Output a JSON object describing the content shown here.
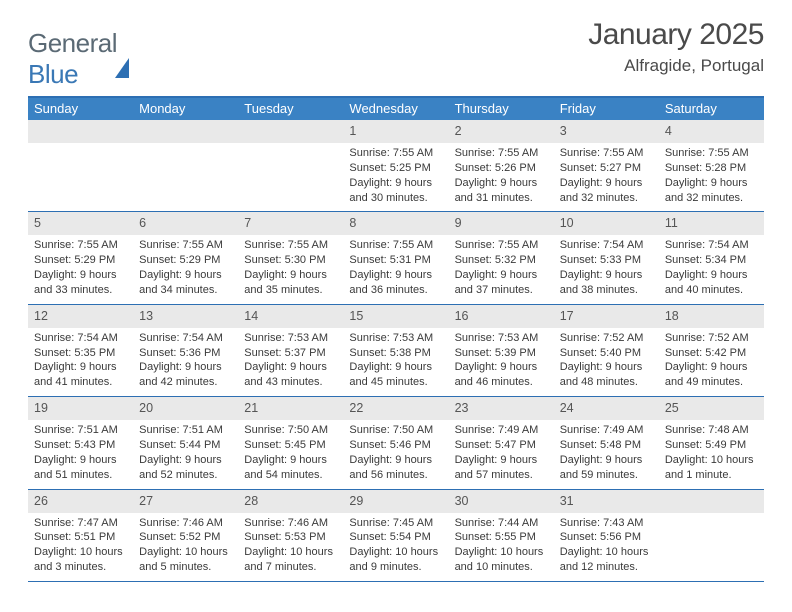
{
  "brand": {
    "part1": "General",
    "part2": "Blue"
  },
  "header": {
    "title": "January 2025",
    "location": "Alfragide, Portugal"
  },
  "colors": {
    "header_bar": "#3a82c4",
    "rule": "#2d6fb3",
    "daynum_bg": "#e9e9e9",
    "text": "#3a3a3a",
    "page_bg": "#ffffff"
  },
  "typography": {
    "title_fontsize": 30,
    "location_fontsize": 17,
    "dow_fontsize": 13,
    "daynum_fontsize": 12.5,
    "cell_fontsize": 11
  },
  "days_of_week": [
    "Sunday",
    "Monday",
    "Tuesday",
    "Wednesday",
    "Thursday",
    "Friday",
    "Saturday"
  ],
  "weeks": [
    [
      {
        "n": "",
        "sr": "",
        "ss": "",
        "dl": ""
      },
      {
        "n": "",
        "sr": "",
        "ss": "",
        "dl": ""
      },
      {
        "n": "",
        "sr": "",
        "ss": "",
        "dl": ""
      },
      {
        "n": "1",
        "sr": "Sunrise: 7:55 AM",
        "ss": "Sunset: 5:25 PM",
        "dl": "Daylight: 9 hours and 30 minutes."
      },
      {
        "n": "2",
        "sr": "Sunrise: 7:55 AM",
        "ss": "Sunset: 5:26 PM",
        "dl": "Daylight: 9 hours and 31 minutes."
      },
      {
        "n": "3",
        "sr": "Sunrise: 7:55 AM",
        "ss": "Sunset: 5:27 PM",
        "dl": "Daylight: 9 hours and 32 minutes."
      },
      {
        "n": "4",
        "sr": "Sunrise: 7:55 AM",
        "ss": "Sunset: 5:28 PM",
        "dl": "Daylight: 9 hours and 32 minutes."
      }
    ],
    [
      {
        "n": "5",
        "sr": "Sunrise: 7:55 AM",
        "ss": "Sunset: 5:29 PM",
        "dl": "Daylight: 9 hours and 33 minutes."
      },
      {
        "n": "6",
        "sr": "Sunrise: 7:55 AM",
        "ss": "Sunset: 5:29 PM",
        "dl": "Daylight: 9 hours and 34 minutes."
      },
      {
        "n": "7",
        "sr": "Sunrise: 7:55 AM",
        "ss": "Sunset: 5:30 PM",
        "dl": "Daylight: 9 hours and 35 minutes."
      },
      {
        "n": "8",
        "sr": "Sunrise: 7:55 AM",
        "ss": "Sunset: 5:31 PM",
        "dl": "Daylight: 9 hours and 36 minutes."
      },
      {
        "n": "9",
        "sr": "Sunrise: 7:55 AM",
        "ss": "Sunset: 5:32 PM",
        "dl": "Daylight: 9 hours and 37 minutes."
      },
      {
        "n": "10",
        "sr": "Sunrise: 7:54 AM",
        "ss": "Sunset: 5:33 PM",
        "dl": "Daylight: 9 hours and 38 minutes."
      },
      {
        "n": "11",
        "sr": "Sunrise: 7:54 AM",
        "ss": "Sunset: 5:34 PM",
        "dl": "Daylight: 9 hours and 40 minutes."
      }
    ],
    [
      {
        "n": "12",
        "sr": "Sunrise: 7:54 AM",
        "ss": "Sunset: 5:35 PM",
        "dl": "Daylight: 9 hours and 41 minutes."
      },
      {
        "n": "13",
        "sr": "Sunrise: 7:54 AM",
        "ss": "Sunset: 5:36 PM",
        "dl": "Daylight: 9 hours and 42 minutes."
      },
      {
        "n": "14",
        "sr": "Sunrise: 7:53 AM",
        "ss": "Sunset: 5:37 PM",
        "dl": "Daylight: 9 hours and 43 minutes."
      },
      {
        "n": "15",
        "sr": "Sunrise: 7:53 AM",
        "ss": "Sunset: 5:38 PM",
        "dl": "Daylight: 9 hours and 45 minutes."
      },
      {
        "n": "16",
        "sr": "Sunrise: 7:53 AM",
        "ss": "Sunset: 5:39 PM",
        "dl": "Daylight: 9 hours and 46 minutes."
      },
      {
        "n": "17",
        "sr": "Sunrise: 7:52 AM",
        "ss": "Sunset: 5:40 PM",
        "dl": "Daylight: 9 hours and 48 minutes."
      },
      {
        "n": "18",
        "sr": "Sunrise: 7:52 AM",
        "ss": "Sunset: 5:42 PM",
        "dl": "Daylight: 9 hours and 49 minutes."
      }
    ],
    [
      {
        "n": "19",
        "sr": "Sunrise: 7:51 AM",
        "ss": "Sunset: 5:43 PM",
        "dl": "Daylight: 9 hours and 51 minutes."
      },
      {
        "n": "20",
        "sr": "Sunrise: 7:51 AM",
        "ss": "Sunset: 5:44 PM",
        "dl": "Daylight: 9 hours and 52 minutes."
      },
      {
        "n": "21",
        "sr": "Sunrise: 7:50 AM",
        "ss": "Sunset: 5:45 PM",
        "dl": "Daylight: 9 hours and 54 minutes."
      },
      {
        "n": "22",
        "sr": "Sunrise: 7:50 AM",
        "ss": "Sunset: 5:46 PM",
        "dl": "Daylight: 9 hours and 56 minutes."
      },
      {
        "n": "23",
        "sr": "Sunrise: 7:49 AM",
        "ss": "Sunset: 5:47 PM",
        "dl": "Daylight: 9 hours and 57 minutes."
      },
      {
        "n": "24",
        "sr": "Sunrise: 7:49 AM",
        "ss": "Sunset: 5:48 PM",
        "dl": "Daylight: 9 hours and 59 minutes."
      },
      {
        "n": "25",
        "sr": "Sunrise: 7:48 AM",
        "ss": "Sunset: 5:49 PM",
        "dl": "Daylight: 10 hours and 1 minute."
      }
    ],
    [
      {
        "n": "26",
        "sr": "Sunrise: 7:47 AM",
        "ss": "Sunset: 5:51 PM",
        "dl": "Daylight: 10 hours and 3 minutes."
      },
      {
        "n": "27",
        "sr": "Sunrise: 7:46 AM",
        "ss": "Sunset: 5:52 PM",
        "dl": "Daylight: 10 hours and 5 minutes."
      },
      {
        "n": "28",
        "sr": "Sunrise: 7:46 AM",
        "ss": "Sunset: 5:53 PM",
        "dl": "Daylight: 10 hours and 7 minutes."
      },
      {
        "n": "29",
        "sr": "Sunrise: 7:45 AM",
        "ss": "Sunset: 5:54 PM",
        "dl": "Daylight: 10 hours and 9 minutes."
      },
      {
        "n": "30",
        "sr": "Sunrise: 7:44 AM",
        "ss": "Sunset: 5:55 PM",
        "dl": "Daylight: 10 hours and 10 minutes."
      },
      {
        "n": "31",
        "sr": "Sunrise: 7:43 AM",
        "ss": "Sunset: 5:56 PM",
        "dl": "Daylight: 10 hours and 12 minutes."
      },
      {
        "n": "",
        "sr": "",
        "ss": "",
        "dl": ""
      }
    ]
  ]
}
